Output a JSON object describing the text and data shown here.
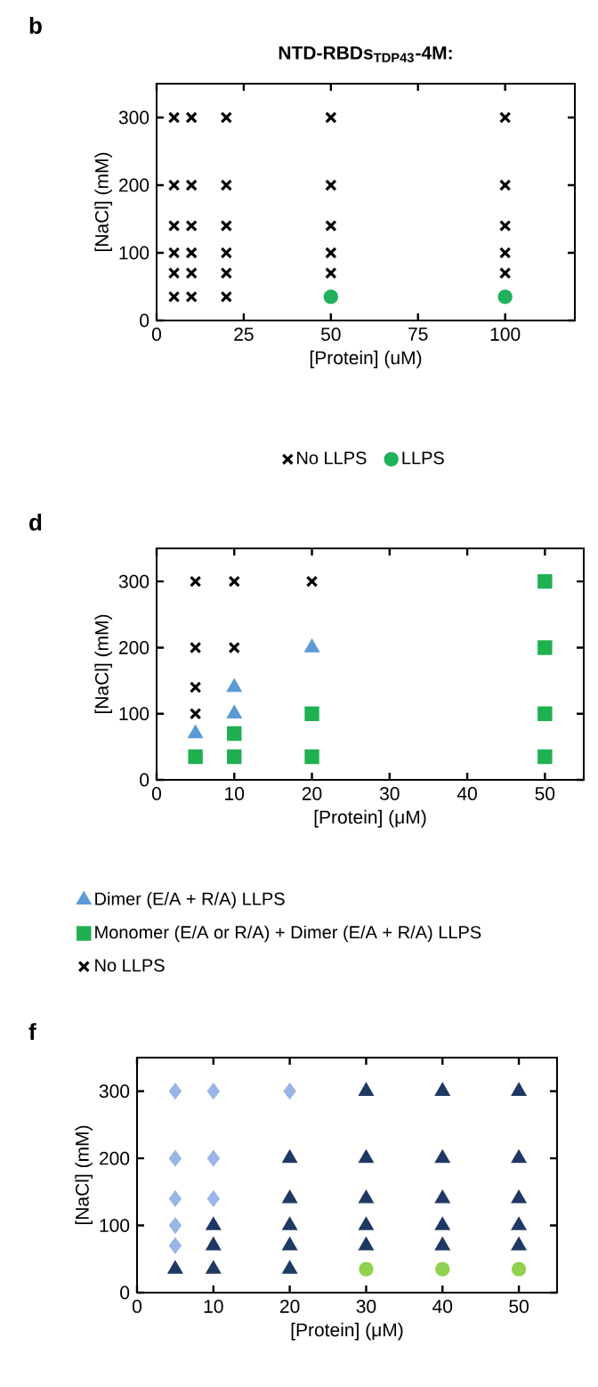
{
  "chart_data": [
    {
      "type": "scatter",
      "title": "**NTD-RBDs$_{TDP43}$-4M:**",
      "annotations": [
        "**b**"
      ],
      "xlabel": "[Protein] (uM)",
      "ylabel": "[NaCl] (mM)",
      "xlim": [
        0,
        120
      ],
      "ylim": [
        0,
        350
      ],
      "xticks": [
        0,
        25,
        50,
        75,
        100
      ],
      "yticks": [
        0,
        100,
        200,
        300
      ],
      "legend": "bottom",
      "series": [
        {
          "name": "No LLPS",
          "color": "#000000",
          "marker": "cross",
          "x": [
            5,
            5,
            5,
            5,
            5,
            5,
            10,
            10,
            10,
            10,
            10,
            10,
            20,
            20,
            20,
            20,
            20,
            20,
            50,
            50,
            50,
            50,
            50,
            100,
            100,
            100,
            100,
            100
          ],
          "values": [
            35,
            70,
            100,
            140,
            200,
            300,
            35,
            70,
            100,
            140,
            200,
            300,
            35,
            70,
            100,
            140,
            200,
            300,
            70,
            100,
            140,
            200,
            300,
            70,
            100,
            140,
            200,
            300
          ]
        },
        {
          "name": "LLPS",
          "color": "#1fb25a",
          "marker": "circle",
          "x": [
            50,
            100
          ],
          "values": [
            35,
            35
          ]
        }
      ]
    },
    {
      "type": "scatter",
      "annotations": [
        "**d**"
      ],
      "xlabel": "[Protein] (μM)",
      "ylabel": "[NaCl] (mM)",
      "xlim": [
        0,
        55
      ],
      "ylim": [
        0,
        350
      ],
      "xticks": [
        0,
        10,
        20,
        30,
        40,
        50
      ],
      "yticks": [
        0,
        100,
        200,
        300
      ],
      "legend": "bottom left",
      "series": [
        {
          "name": "Dimer (E/A + R/A) LLPS",
          "color": "#5b9bd5",
          "marker": "triangle",
          "x": [
            5,
            10,
            10,
            20
          ],
          "values": [
            70,
            100,
            140,
            200
          ]
        },
        {
          "name": "Monomer (E/A or R/A) + Dimer (E/A + R/A) LLPS",
          "color": "#1fb050",
          "marker": "square",
          "x": [
            5,
            10,
            10,
            20,
            20,
            50,
            50,
            50,
            50
          ],
          "values": [
            35,
            35,
            70,
            35,
            100,
            35,
            100,
            200,
            300
          ]
        },
        {
          "name": "No LLPS",
          "color": "#000000",
          "marker": "cross",
          "x": [
            5,
            5,
            5,
            5,
            10,
            10,
            20
          ],
          "values": [
            100,
            140,
            200,
            300,
            200,
            300,
            300
          ]
        }
      ]
    },
    {
      "type": "scatter",
      "annotations": [
        "**f**"
      ],
      "xlabel": "[Protein] (μM)",
      "ylabel": "[NaCl] (mM)",
      "xlim": [
        0,
        55
      ],
      "ylim": [
        0,
        350
      ],
      "xticks": [
        0,
        10,
        20,
        30,
        40,
        50
      ],
      "yticks": [
        0,
        100,
        200,
        300
      ],
      "series": [
        {
          "color": "#9ab5e8",
          "marker": "diamond",
          "x": [
            5,
            5,
            5,
            5,
            5,
            10,
            10,
            10,
            20
          ],
          "values": [
            70,
            100,
            140,
            200,
            300,
            140,
            200,
            300,
            300
          ]
        },
        {
          "color": "#1f3864",
          "marker": "triangle",
          "x": [
            5,
            10,
            10,
            10,
            20,
            20,
            20,
            20,
            20,
            30,
            30,
            30,
            30,
            30,
            40,
            40,
            40,
            40,
            40,
            50,
            50,
            50,
            50,
            50
          ],
          "values": [
            35,
            35,
            70,
            100,
            35,
            70,
            100,
            140,
            200,
            70,
            100,
            140,
            200,
            300,
            70,
            100,
            140,
            200,
            300,
            70,
            100,
            140,
            200,
            300
          ]
        },
        {
          "color": "#92d050",
          "marker": "circle",
          "x": [
            30,
            40,
            50
          ],
          "values": [
            35,
            35,
            35
          ]
        }
      ]
    }
  ]
}
